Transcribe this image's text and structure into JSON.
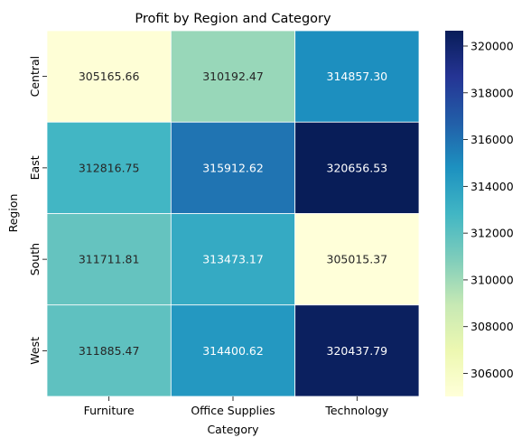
{
  "chart_data": {
    "type": "heatmap",
    "title": "Profit by Region and Category",
    "xlabel": "Category",
    "ylabel": "Region",
    "categories": [
      "Furniture",
      "Office Supplies",
      "Technology"
    ],
    "rows": [
      "Central",
      "East",
      "South",
      "West"
    ],
    "values": [
      [
        305165.66,
        310192.47,
        314857.3
      ],
      [
        312816.75,
        315912.62,
        320656.53
      ],
      [
        311711.81,
        313473.17,
        305015.37
      ],
      [
        311885.47,
        314400.62,
        320437.79
      ]
    ],
    "value_labels": [
      [
        "305165.66",
        "310192.47",
        "314857.30"
      ],
      [
        "312816.75",
        "315912.62",
        "320656.53"
      ],
      [
        "311711.81",
        "313473.17",
        "305015.37"
      ],
      [
        "311885.47",
        "314400.62",
        "320437.79"
      ]
    ],
    "colormap": "YlGnBu",
    "colorbar": {
      "range": [
        305015.37,
        320656.53
      ],
      "ticks": [
        306000,
        308000,
        310000,
        312000,
        314000,
        316000,
        318000,
        320000
      ]
    },
    "cell_border_color": "#ffffff",
    "label_color_dark": "#262626",
    "label_color_light": "#ffffff"
  }
}
